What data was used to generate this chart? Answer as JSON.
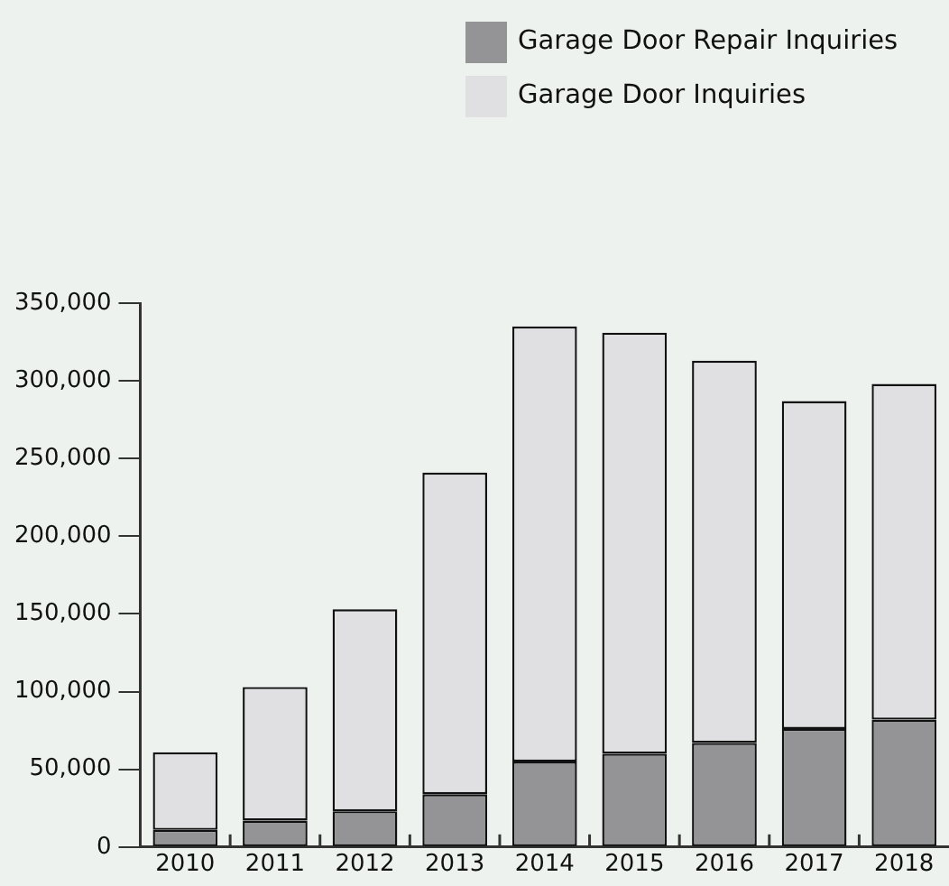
{
  "chart_data": {
    "type": "bar",
    "stacked": true,
    "categories": [
      "2010",
      "2011",
      "2012",
      "2013",
      "2014",
      "2015",
      "2016",
      "2017",
      "2018"
    ],
    "series": [
      {
        "name": "Garage Door Repair Inquiries",
        "color": "#949497",
        "values": [
          11000,
          17000,
          23000,
          34000,
          55000,
          60000,
          67000,
          76000,
          82000
        ]
      },
      {
        "name": "Garage Door Inquiries",
        "color": "#e0e0e2",
        "values": [
          50000,
          86000,
          130000,
          207000,
          280000,
          271000,
          246000,
          211000,
          216000
        ]
      }
    ],
    "ylim": [
      0,
      350000
    ],
    "yticks": [
      {
        "value": 0,
        "label": "0"
      },
      {
        "value": 50000,
        "label": "50,000"
      },
      {
        "value": 100000,
        "label": "100,000"
      },
      {
        "value": 150000,
        "label": "150,000"
      },
      {
        "value": 200000,
        "label": "200,000"
      },
      {
        "value": 250000,
        "label": "250,000"
      },
      {
        "value": 300000,
        "label": "300,000"
      },
      {
        "value": 350000,
        "label": "350,000"
      }
    ],
    "grid": false,
    "legend": "top right"
  }
}
